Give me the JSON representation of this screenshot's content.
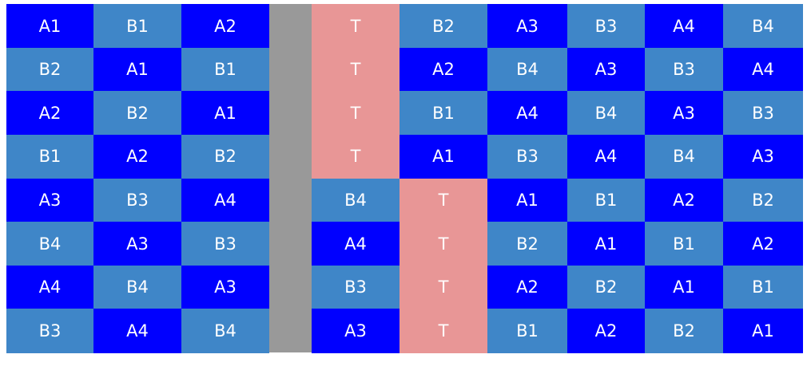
{
  "colors": {
    "A": "#0000ff",
    "B": "#3f86c8",
    "T": "#e89696",
    "gap": "#999999",
    "text": "#ffffff",
    "background": "#ffffff"
  },
  "left_block": {
    "rows": [
      [
        {
          "label": "A1",
          "kind": "A"
        },
        {
          "label": "B1",
          "kind": "B"
        },
        {
          "label": "A2",
          "kind": "A"
        }
      ],
      [
        {
          "label": "B2",
          "kind": "B"
        },
        {
          "label": "A1",
          "kind": "A"
        },
        {
          "label": "B1",
          "kind": "B"
        }
      ],
      [
        {
          "label": "A2",
          "kind": "A"
        },
        {
          "label": "B2",
          "kind": "B"
        },
        {
          "label": "A1",
          "kind": "A"
        }
      ],
      [
        {
          "label": "B1",
          "kind": "B"
        },
        {
          "label": "A2",
          "kind": "A"
        },
        {
          "label": "B2",
          "kind": "B"
        }
      ],
      [
        {
          "label": "A3",
          "kind": "A"
        },
        {
          "label": "B3",
          "kind": "B"
        },
        {
          "label": "A4",
          "kind": "A"
        }
      ],
      [
        {
          "label": "B4",
          "kind": "B"
        },
        {
          "label": "A3",
          "kind": "A"
        },
        {
          "label": "B3",
          "kind": "B"
        }
      ],
      [
        {
          "label": "A4",
          "kind": "A"
        },
        {
          "label": "B4",
          "kind": "B"
        },
        {
          "label": "A3",
          "kind": "A"
        }
      ],
      [
        {
          "label": "B3",
          "kind": "B"
        },
        {
          "label": "A4",
          "kind": "A"
        },
        {
          "label": "B4",
          "kind": "B"
        }
      ]
    ]
  },
  "right_block": {
    "rows": [
      [
        {
          "label": "T",
          "kind": "T"
        },
        {
          "label": "B2",
          "kind": "B"
        },
        {
          "label": "A3",
          "kind": "A"
        },
        {
          "label": "B3",
          "kind": "B"
        },
        {
          "label": "A4",
          "kind": "A"
        },
        {
          "label": "B4",
          "kind": "B"
        }
      ],
      [
        {
          "label": "T",
          "kind": "T"
        },
        {
          "label": "A2",
          "kind": "A"
        },
        {
          "label": "B4",
          "kind": "B"
        },
        {
          "label": "A3",
          "kind": "A"
        },
        {
          "label": "B3",
          "kind": "B"
        },
        {
          "label": "A4",
          "kind": "A"
        }
      ],
      [
        {
          "label": "T",
          "kind": "T"
        },
        {
          "label": "B1",
          "kind": "B"
        },
        {
          "label": "A4",
          "kind": "A"
        },
        {
          "label": "B4",
          "kind": "B"
        },
        {
          "label": "A3",
          "kind": "A"
        },
        {
          "label": "B3",
          "kind": "B"
        }
      ],
      [
        {
          "label": "T",
          "kind": "T"
        },
        {
          "label": "A1",
          "kind": "A"
        },
        {
          "label": "B3",
          "kind": "B"
        },
        {
          "label": "A4",
          "kind": "A"
        },
        {
          "label": "B4",
          "kind": "B"
        },
        {
          "label": "A3",
          "kind": "A"
        }
      ],
      [
        {
          "label": "B4",
          "kind": "B"
        },
        {
          "label": "T",
          "kind": "T"
        },
        {
          "label": "A1",
          "kind": "A"
        },
        {
          "label": "B1",
          "kind": "B"
        },
        {
          "label": "A2",
          "kind": "A"
        },
        {
          "label": "B2",
          "kind": "B"
        }
      ],
      [
        {
          "label": "A4",
          "kind": "A"
        },
        {
          "label": "T",
          "kind": "T"
        },
        {
          "label": "B2",
          "kind": "B"
        },
        {
          "label": "A1",
          "kind": "A"
        },
        {
          "label": "B1",
          "kind": "B"
        },
        {
          "label": "A2",
          "kind": "A"
        }
      ],
      [
        {
          "label": "B3",
          "kind": "B"
        },
        {
          "label": "T",
          "kind": "T"
        },
        {
          "label": "A2",
          "kind": "A"
        },
        {
          "label": "B2",
          "kind": "B"
        },
        {
          "label": "A1",
          "kind": "A"
        },
        {
          "label": "B1",
          "kind": "B"
        }
      ],
      [
        {
          "label": "A3",
          "kind": "A"
        },
        {
          "label": "T",
          "kind": "T"
        },
        {
          "label": "B1",
          "kind": "B"
        },
        {
          "label": "A2",
          "kind": "A"
        },
        {
          "label": "B2",
          "kind": "B"
        },
        {
          "label": "A1",
          "kind": "A"
        }
      ]
    ]
  }
}
